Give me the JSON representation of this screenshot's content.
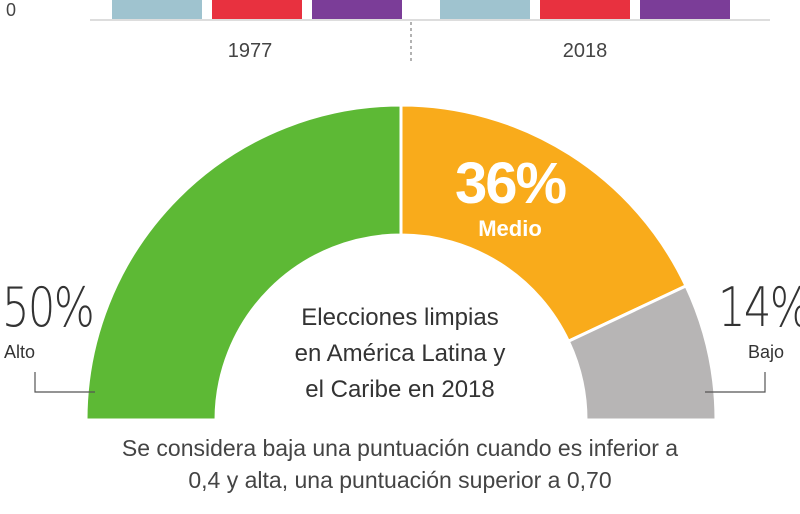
{
  "chart_data": [
    {
      "type": "bar",
      "categories": [
        "1977",
        "2018"
      ],
      "series": [
        {
          "color": "#9fc3cf"
        },
        {
          "color": "#e8313f"
        },
        {
          "color": "#7b3d98"
        }
      ],
      "axis_zero_label": "0"
    },
    {
      "type": "pie",
      "shape": "half-donut",
      "title_lines": [
        "Elecciones limpias",
        "en América Latina y",
        "el Caribe en 2018"
      ],
      "slices": [
        {
          "label": "Alto",
          "value": 50,
          "display": "50%",
          "color": "#5db935"
        },
        {
          "label": "Medio",
          "value": 36,
          "display": "36%",
          "color": "#f9ab1b"
        },
        {
          "label": "Bajo",
          "value": 14,
          "display": "14%",
          "color": "#b7b5b5"
        }
      ]
    }
  ],
  "footnote_lines": [
    "Se considera baja una puntuación cuando es inferior a",
    "0,4 y alta, una puntuación superior a 0,70"
  ]
}
